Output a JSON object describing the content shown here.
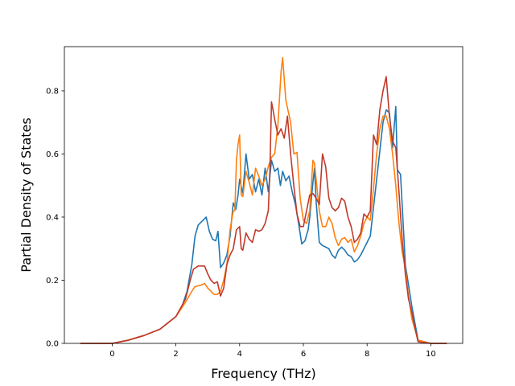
{
  "chart_data": {
    "type": "line",
    "title": "",
    "xlabel": "Frequency (THz)",
    "ylabel": "Partial Density of States",
    "xlim": [
      -1.5,
      11.0
    ],
    "ylim": [
      0.0,
      0.94
    ],
    "xticks": [
      0,
      2,
      4,
      6,
      8,
      10
    ],
    "yticks": [
      0.0,
      0.2,
      0.4,
      0.6,
      0.8
    ],
    "xtick_labels": [
      "0",
      "2",
      "4",
      "6",
      "8",
      "10"
    ],
    "ytick_labels": [
      "0.0",
      "0.2",
      "0.4",
      "0.6",
      "0.8"
    ],
    "grid": false,
    "legend": "none",
    "series": [
      {
        "color": "#1f77b4",
        "points": [
          [
            -1.0,
            0.0
          ],
          [
            0.0,
            0.0
          ],
          [
            0.5,
            0.01
          ],
          [
            1.0,
            0.025
          ],
          [
            1.5,
            0.045
          ],
          [
            2.0,
            0.085
          ],
          [
            2.2,
            0.12
          ],
          [
            2.35,
            0.165
          ],
          [
            2.5,
            0.25
          ],
          [
            2.6,
            0.34
          ],
          [
            2.7,
            0.375
          ],
          [
            2.85,
            0.39
          ],
          [
            2.95,
            0.4
          ],
          [
            3.05,
            0.355
          ],
          [
            3.15,
            0.33
          ],
          [
            3.25,
            0.325
          ],
          [
            3.32,
            0.355
          ],
          [
            3.4,
            0.24
          ],
          [
            3.5,
            0.255
          ],
          [
            3.6,
            0.28
          ],
          [
            3.7,
            0.34
          ],
          [
            3.8,
            0.445
          ],
          [
            3.88,
            0.425
          ],
          [
            3.95,
            0.47
          ],
          [
            4.0,
            0.52
          ],
          [
            4.1,
            0.475
          ],
          [
            4.2,
            0.6
          ],
          [
            4.3,
            0.52
          ],
          [
            4.4,
            0.535
          ],
          [
            4.5,
            0.48
          ],
          [
            4.6,
            0.52
          ],
          [
            4.7,
            0.47
          ],
          [
            4.8,
            0.555
          ],
          [
            4.9,
            0.48
          ],
          [
            5.0,
            0.58
          ],
          [
            5.1,
            0.545
          ],
          [
            5.2,
            0.555
          ],
          [
            5.28,
            0.5
          ],
          [
            5.35,
            0.545
          ],
          [
            5.45,
            0.515
          ],
          [
            5.55,
            0.53
          ],
          [
            5.65,
            0.48
          ],
          [
            5.75,
            0.44
          ],
          [
            5.85,
            0.38
          ],
          [
            5.95,
            0.315
          ],
          [
            6.05,
            0.325
          ],
          [
            6.15,
            0.36
          ],
          [
            6.2,
            0.4
          ],
          [
            6.3,
            0.51
          ],
          [
            6.35,
            0.555
          ],
          [
            6.4,
            0.45
          ],
          [
            6.5,
            0.32
          ],
          [
            6.6,
            0.31
          ],
          [
            6.7,
            0.305
          ],
          [
            6.8,
            0.3
          ],
          [
            6.9,
            0.28
          ],
          [
            7.0,
            0.27
          ],
          [
            7.1,
            0.295
          ],
          [
            7.2,
            0.305
          ],
          [
            7.3,
            0.295
          ],
          [
            7.4,
            0.28
          ],
          [
            7.5,
            0.275
          ],
          [
            7.6,
            0.258
          ],
          [
            7.7,
            0.265
          ],
          [
            7.8,
            0.28
          ],
          [
            7.9,
            0.3
          ],
          [
            8.0,
            0.32
          ],
          [
            8.1,
            0.34
          ],
          [
            8.2,
            0.43
          ],
          [
            8.3,
            0.52
          ],
          [
            8.4,
            0.61
          ],
          [
            8.5,
            0.7
          ],
          [
            8.6,
            0.74
          ],
          [
            8.7,
            0.73
          ],
          [
            8.8,
            0.62
          ],
          [
            8.9,
            0.75
          ],
          [
            8.95,
            0.55
          ],
          [
            9.05,
            0.535
          ],
          [
            9.2,
            0.25
          ],
          [
            9.4,
            0.12
          ],
          [
            9.6,
            0.01
          ],
          [
            10.0,
            0.0
          ],
          [
            10.5,
            0.0
          ]
        ]
      },
      {
        "color": "#ff7f0e",
        "points": [
          [
            -1.0,
            0.0
          ],
          [
            0.0,
            0.0
          ],
          [
            0.5,
            0.01
          ],
          [
            1.0,
            0.025
          ],
          [
            1.5,
            0.045
          ],
          [
            2.0,
            0.085
          ],
          [
            2.3,
            0.13
          ],
          [
            2.5,
            0.165
          ],
          [
            2.6,
            0.18
          ],
          [
            2.8,
            0.185
          ],
          [
            2.9,
            0.19
          ],
          [
            3.0,
            0.175
          ],
          [
            3.1,
            0.165
          ],
          [
            3.2,
            0.155
          ],
          [
            3.3,
            0.155
          ],
          [
            3.4,
            0.165
          ],
          [
            3.5,
            0.2
          ],
          [
            3.6,
            0.25
          ],
          [
            3.7,
            0.36
          ],
          [
            3.8,
            0.42
          ],
          [
            3.85,
            0.42
          ],
          [
            3.9,
            0.58
          ],
          [
            3.95,
            0.63
          ],
          [
            4.0,
            0.66
          ],
          [
            4.05,
            0.47
          ],
          [
            4.1,
            0.465
          ],
          [
            4.2,
            0.545
          ],
          [
            4.3,
            0.51
          ],
          [
            4.4,
            0.47
          ],
          [
            4.5,
            0.555
          ],
          [
            4.6,
            0.53
          ],
          [
            4.7,
            0.5
          ],
          [
            4.8,
            0.52
          ],
          [
            4.9,
            0.56
          ],
          [
            5.0,
            0.59
          ],
          [
            5.1,
            0.6
          ],
          [
            5.2,
            0.69
          ],
          [
            5.3,
            0.86
          ],
          [
            5.35,
            0.905
          ],
          [
            5.45,
            0.77
          ],
          [
            5.6,
            0.7
          ],
          [
            5.7,
            0.6
          ],
          [
            5.8,
            0.605
          ],
          [
            5.9,
            0.46
          ],
          [
            6.0,
            0.39
          ],
          [
            6.1,
            0.38
          ],
          [
            6.2,
            0.42
          ],
          [
            6.3,
            0.58
          ],
          [
            6.35,
            0.57
          ],
          [
            6.5,
            0.42
          ],
          [
            6.6,
            0.37
          ],
          [
            6.7,
            0.37
          ],
          [
            6.8,
            0.4
          ],
          [
            6.9,
            0.38
          ],
          [
            7.0,
            0.335
          ],
          [
            7.1,
            0.31
          ],
          [
            7.2,
            0.33
          ],
          [
            7.3,
            0.335
          ],
          [
            7.4,
            0.32
          ],
          [
            7.5,
            0.33
          ],
          [
            7.6,
            0.29
          ],
          [
            7.7,
            0.31
          ],
          [
            7.8,
            0.34
          ],
          [
            7.9,
            0.38
          ],
          [
            8.0,
            0.4
          ],
          [
            8.1,
            0.39
          ],
          [
            8.2,
            0.49
          ],
          [
            8.3,
            0.6
          ],
          [
            8.4,
            0.68
          ],
          [
            8.5,
            0.72
          ],
          [
            8.6,
            0.72
          ],
          [
            8.7,
            0.68
          ],
          [
            8.8,
            0.6
          ],
          [
            8.9,
            0.5
          ],
          [
            9.0,
            0.38
          ],
          [
            9.1,
            0.29
          ],
          [
            9.2,
            0.24
          ],
          [
            9.3,
            0.15
          ],
          [
            9.4,
            0.08
          ],
          [
            9.6,
            0.01
          ],
          [
            10.0,
            0.0
          ],
          [
            10.5,
            0.0
          ]
        ]
      },
      {
        "color": "#c0392b",
        "points": [
          [
            -1.0,
            0.0
          ],
          [
            0.0,
            0.0
          ],
          [
            0.5,
            0.01
          ],
          [
            1.0,
            0.025
          ],
          [
            1.5,
            0.045
          ],
          [
            2.0,
            0.085
          ],
          [
            2.3,
            0.14
          ],
          [
            2.45,
            0.2
          ],
          [
            2.55,
            0.235
          ],
          [
            2.7,
            0.245
          ],
          [
            2.9,
            0.245
          ],
          [
            3.0,
            0.22
          ],
          [
            3.1,
            0.2
          ],
          [
            3.2,
            0.19
          ],
          [
            3.3,
            0.195
          ],
          [
            3.4,
            0.15
          ],
          [
            3.5,
            0.175
          ],
          [
            3.6,
            0.25
          ],
          [
            3.7,
            0.28
          ],
          [
            3.8,
            0.3
          ],
          [
            3.9,
            0.36
          ],
          [
            4.0,
            0.37
          ],
          [
            4.05,
            0.3
          ],
          [
            4.1,
            0.295
          ],
          [
            4.2,
            0.35
          ],
          [
            4.3,
            0.33
          ],
          [
            4.4,
            0.32
          ],
          [
            4.5,
            0.36
          ],
          [
            4.6,
            0.355
          ],
          [
            4.7,
            0.36
          ],
          [
            4.8,
            0.38
          ],
          [
            4.9,
            0.42
          ],
          [
            4.95,
            0.55
          ],
          [
            5.0,
            0.765
          ],
          [
            5.1,
            0.71
          ],
          [
            5.2,
            0.66
          ],
          [
            5.3,
            0.68
          ],
          [
            5.4,
            0.65
          ],
          [
            5.5,
            0.72
          ],
          [
            5.6,
            0.6
          ],
          [
            5.7,
            0.5
          ],
          [
            5.8,
            0.41
          ],
          [
            5.9,
            0.37
          ],
          [
            6.0,
            0.37
          ],
          [
            6.1,
            0.42
          ],
          [
            6.2,
            0.47
          ],
          [
            6.3,
            0.475
          ],
          [
            6.4,
            0.46
          ],
          [
            6.5,
            0.44
          ],
          [
            6.6,
            0.6
          ],
          [
            6.7,
            0.56
          ],
          [
            6.8,
            0.46
          ],
          [
            6.9,
            0.43
          ],
          [
            7.0,
            0.42
          ],
          [
            7.1,
            0.43
          ],
          [
            7.2,
            0.46
          ],
          [
            7.3,
            0.45
          ],
          [
            7.4,
            0.4
          ],
          [
            7.5,
            0.37
          ],
          [
            7.6,
            0.32
          ],
          [
            7.7,
            0.33
          ],
          [
            7.8,
            0.35
          ],
          [
            7.9,
            0.41
          ],
          [
            8.0,
            0.4
          ],
          [
            8.1,
            0.42
          ],
          [
            8.2,
            0.66
          ],
          [
            8.3,
            0.63
          ],
          [
            8.4,
            0.74
          ],
          [
            8.5,
            0.8
          ],
          [
            8.6,
            0.845
          ],
          [
            8.7,
            0.72
          ],
          [
            8.8,
            0.64
          ],
          [
            8.9,
            0.62
          ],
          [
            9.0,
            0.48
          ],
          [
            9.1,
            0.33
          ],
          [
            9.2,
            0.22
          ],
          [
            9.3,
            0.14
          ],
          [
            9.4,
            0.1
          ],
          [
            9.5,
            0.05
          ],
          [
            9.6,
            0.005
          ],
          [
            10.0,
            0.0
          ],
          [
            10.5,
            0.0
          ]
        ]
      }
    ]
  }
}
